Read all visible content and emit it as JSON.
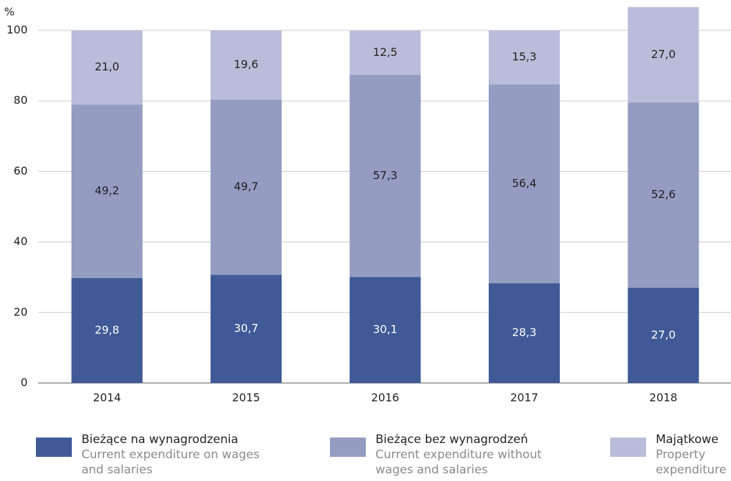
{
  "chart_data": {
    "type": "stacked_bar",
    "y_label": "%",
    "categories": [
      "2014",
      "2015",
      "2016",
      "2017",
      "2018"
    ],
    "series": [
      {
        "name": "Bieżące na wynagrodzenia",
        "name_en": "Current expenditure on wages and salaries",
        "color": "#3f5a96",
        "label_color": "#ffffff",
        "values": [
          29.8,
          30.7,
          30.1,
          28.3,
          27.0
        ],
        "value_labels": [
          "29,8",
          "30,7",
          "30,1",
          "28,3",
          "27,0"
        ]
      },
      {
        "name": "Bieżące bez wynagrodzeń",
        "name_en": "Current expenditure without wages and salaries",
        "color": "#949cc2",
        "label_color": "#231f20",
        "values": [
          49.2,
          49.7,
          57.3,
          56.4,
          52.6
        ],
        "value_labels": [
          "49,2",
          "49,7",
          "57,3",
          "56,4",
          "52,6"
        ]
      },
      {
        "name": "Majątkowe",
        "name_en": "Property expenditure",
        "color": "#babdd9",
        "label_color": "#231f20",
        "values": [
          21.0,
          19.6,
          12.5,
          15.3,
          27.0
        ],
        "value_labels": [
          "21,0",
          "19,6",
          "12,5",
          "15,3",
          "27,0"
        ]
      }
    ],
    "ylim": [
      0,
      100
    ],
    "yticks": [
      0,
      20,
      40,
      60,
      80,
      100
    ],
    "grid": true
  }
}
